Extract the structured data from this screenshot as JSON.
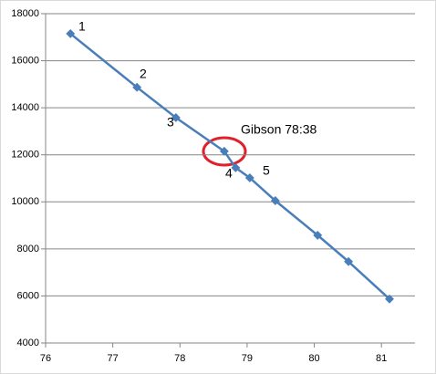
{
  "chart_data": {
    "type": "scatter-line",
    "x": [
      76.37,
      77.36,
      77.94,
      78.66,
      78.83,
      79.04,
      79.42,
      80.05,
      80.51,
      81.12
    ],
    "series": [
      {
        "color": "#4a7ebb",
        "values": [
          17150,
          14870,
          13580,
          12150,
          11450,
          11020,
          10050,
          8580,
          7460,
          5870
        ]
      }
    ],
    "xlim": [
      76,
      81.5
    ],
    "xticks": [
      76,
      77,
      78,
      79,
      80,
      81
    ],
    "ylim": [
      4000,
      18000
    ],
    "yticks": [
      4000,
      6000,
      8000,
      10000,
      12000,
      14000,
      16000,
      18000
    ],
    "grid": true,
    "annotations": [
      "1",
      "2",
      "3",
      "4",
      "5",
      "Gibson 78:38"
    ]
  }
}
